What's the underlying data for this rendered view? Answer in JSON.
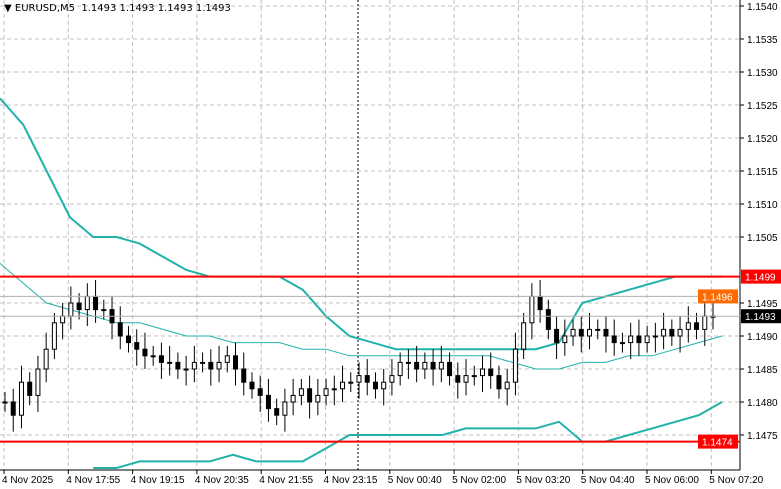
{
  "header": {
    "symbol": "EURUSD,M5",
    "ohlc": "1.1493 1.1493 1.1493 1.1493"
  },
  "chart_data": {
    "type": "candlestick",
    "symbol": "EURUSD",
    "timeframe": "M5",
    "ylim": [
      1.1468,
      1.1541
    ],
    "y_ticks": [
      "1.1540",
      "1.1535",
      "1.1530",
      "1.1525",
      "1.1520",
      "1.1515",
      "1.1510",
      "1.1505",
      "1.1495",
      "1.1490",
      "1.1485",
      "1.1480",
      "1.1475"
    ],
    "x_ticks": [
      "4 Nov 2025",
      "4 Nov 17:55",
      "4 Nov 19:15",
      "4 Nov 20:35",
      "4 Nov 21:55",
      "4 Nov 23:15",
      "5 Nov 00:40",
      "5 Nov 02:00",
      "5 Nov 03:20",
      "5 Nov 04:40",
      "5 Nov 06:00",
      "5 Nov 07:20"
    ],
    "grid": true,
    "closes": [
      1.148,
      1.1478,
      1.1483,
      1.1481,
      1.1485,
      1.1488,
      1.1492,
      1.1493,
      1.1495,
      1.1494,
      1.1496,
      1.1494,
      1.1494,
      1.1492,
      1.149,
      1.1489,
      1.1488,
      1.1487,
      1.1487,
      1.1486,
      1.1486,
      1.1485,
      1.1485,
      1.1486,
      1.1486,
      1.1485,
      1.1486,
      1.1487,
      1.1485,
      1.1483,
      1.1482,
      1.1481,
      1.1479,
      1.1478,
      1.148,
      1.1481,
      1.1482,
      1.148,
      1.1481,
      1.1482,
      1.1482,
      1.1483,
      1.1483,
      1.1484,
      1.1483,
      1.1482,
      1.1483,
      1.1484,
      1.1486,
      1.1486,
      1.1485,
      1.1486,
      1.1485,
      1.1486,
      1.1484,
      1.1483,
      1.1484,
      1.1484,
      1.1485,
      1.1484,
      1.1482,
      1.1483,
      1.1488,
      1.1492,
      1.1496,
      1.1494,
      1.1491,
      1.1489,
      1.149,
      1.1491,
      1.149,
      1.1491,
      1.1491,
      1.149,
      1.1489,
      1.1489,
      1.149,
      1.1489,
      1.149,
      1.149,
      1.1491,
      1.149,
      1.1491,
      1.1492,
      1.1491,
      1.1493,
      1.1493
    ],
    "bands": {
      "color": "#20b2aa",
      "upper": [
        1.1526,
        1.1522,
        1.1515,
        1.1508,
        1.1505,
        1.1505,
        1.1504,
        1.1502,
        1.15,
        1.1499,
        1.1499,
        1.1499,
        1.1499,
        1.1497,
        1.1493,
        1.149,
        1.1489,
        1.1488,
        1.1488,
        1.1488,
        1.1488,
        1.1488,
        1.1488,
        1.1488,
        1.1489,
        1.1495,
        1.1496,
        1.1497,
        1.1498,
        1.1499,
        1.1499,
        1.1499
      ],
      "middle": [
        1.1501,
        1.1498,
        1.1495,
        1.1494,
        1.1493,
        1.1492,
        1.1492,
        1.1491,
        1.149,
        1.149,
        1.1489,
        1.1489,
        1.1489,
        1.1488,
        1.1488,
        1.1487,
        1.1487,
        1.1487,
        1.1487,
        1.1487,
        1.1487,
        1.1487,
        1.1486,
        1.1485,
        1.1485,
        1.1486,
        1.1486,
        1.1487,
        1.1487,
        1.1488,
        1.1489,
        1.149
      ],
      "lower": [
        null,
        null,
        null,
        null,
        1.147,
        1.147,
        1.1471,
        1.1471,
        1.1471,
        1.1471,
        1.1472,
        1.1471,
        1.1471,
        1.1471,
        1.1473,
        1.1475,
        1.1475,
        1.1475,
        1.1475,
        1.1475,
        1.1476,
        1.1476,
        1.1476,
        1.1476,
        1.1477,
        1.1474,
        1.1474,
        1.1475,
        1.1476,
        1.1477,
        1.1478,
        1.148
      ]
    },
    "levels": [
      {
        "price": 1.1499,
        "label": "1.1499",
        "color": "#ff0000",
        "style": "solid-thick"
      },
      {
        "price": 1.1474,
        "label": "1.1474",
        "color": "#ff0000",
        "style": "solid-thick"
      },
      {
        "price": 1.1496,
        "label": "1.1496",
        "color": "#ff6a00",
        "style": "ask"
      },
      {
        "price": 1.1493,
        "label": "1.1493",
        "color": "#000000",
        "style": "bid"
      }
    ],
    "crosshair_time": "4 Nov 23:15"
  }
}
